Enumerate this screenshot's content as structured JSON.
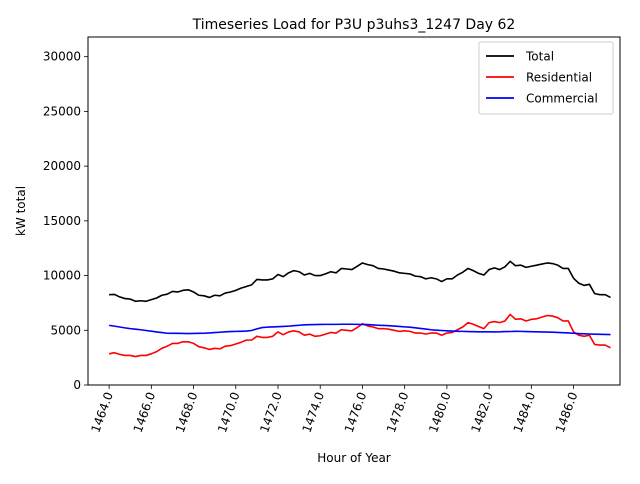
{
  "chart_data": {
    "type": "line",
    "title": "Timeseries Load for P3U p3uhs3_1247  Day 62",
    "xlabel": "Hour of Year",
    "ylabel": "kW total",
    "xlim": [
      1463.0,
      1488.2
    ],
    "ylim": [
      0,
      31800
    ],
    "xticks": [
      1464,
      1466,
      1468,
      1470,
      1472,
      1474,
      1476,
      1478,
      1480,
      1482,
      1484,
      1486
    ],
    "xtick_labels": [
      "1464.0",
      "1466.0",
      "1468.0",
      "1470.0",
      "1472.0",
      "1474.0",
      "1476.0",
      "1478.0",
      "1480.0",
      "1482.0",
      "1484.0",
      "1486.0"
    ],
    "yticks": [
      0,
      5000,
      10000,
      15000,
      20000,
      25000,
      30000
    ],
    "ytick_labels": [
      "0",
      "5000",
      "10000",
      "15000",
      "20000",
      "25000",
      "30000"
    ],
    "legend_position": "top-right",
    "x": [
      1464.0,
      1464.25,
      1464.5,
      1464.75,
      1465.0,
      1465.25,
      1465.5,
      1465.75,
      1466.0,
      1466.25,
      1466.5,
      1466.75,
      1467.0,
      1467.25,
      1467.5,
      1467.75,
      1468.0,
      1468.25,
      1468.5,
      1468.75,
      1469.0,
      1469.25,
      1469.5,
      1469.75,
      1470.0,
      1470.25,
      1470.5,
      1470.75,
      1471.0,
      1471.25,
      1471.5,
      1471.75,
      1472.0,
      1472.25,
      1472.5,
      1472.75,
      1473.0,
      1473.25,
      1473.5,
      1473.75,
      1474.0,
      1474.25,
      1474.5,
      1474.75,
      1475.0,
      1475.25,
      1475.5,
      1475.75,
      1476.0,
      1476.25,
      1476.5,
      1476.75,
      1477.0,
      1477.25,
      1477.5,
      1477.75,
      1478.0,
      1478.25,
      1478.5,
      1478.75,
      1479.0,
      1479.25,
      1479.5,
      1479.75,
      1480.0,
      1480.25,
      1480.5,
      1480.75,
      1481.0,
      1481.25,
      1481.5,
      1481.75,
      1482.0,
      1482.25,
      1482.5,
      1482.75,
      1483.0,
      1483.25,
      1483.5,
      1483.75,
      1484.0,
      1484.25,
      1484.5,
      1484.75,
      1485.0,
      1485.25,
      1485.5,
      1485.75,
      1486.0,
      1486.25,
      1486.5,
      1486.75,
      1487.0,
      1487.25,
      1487.5,
      1487.75
    ],
    "series": [
      {
        "name": "Total",
        "color": "#000000",
        "values": [
          8250,
          8280,
          8050,
          7900,
          7850,
          7650,
          7700,
          7650,
          7800,
          7950,
          8200,
          8300,
          8550,
          8500,
          8650,
          8700,
          8500,
          8200,
          8150,
          8000,
          8200,
          8150,
          8400,
          8500,
          8650,
          8850,
          9000,
          9150,
          9650,
          9600,
          9600,
          9700,
          10100,
          9900,
          10250,
          10450,
          10350,
          10050,
          10200,
          10000,
          10000,
          10150,
          10350,
          10250,
          10650,
          10600,
          10550,
          10850,
          11150,
          11000,
          10900,
          10650,
          10600,
          10500,
          10400,
          10250,
          10200,
          10150,
          9950,
          9900,
          9700,
          9800,
          9700,
          9450,
          9700,
          9700,
          10050,
          10300,
          10650,
          10450,
          10200,
          10050,
          10550,
          10700,
          10550,
          10800,
          11300,
          10900,
          10950,
          10750,
          10850,
          10950,
          11050,
          11150,
          11100,
          10950,
          10650,
          10650,
          9750,
          9300,
          9100,
          9200,
          8350,
          8250,
          8250,
          8000
        ]
      },
      {
        "name": "Residential",
        "color": "#ff0000",
        "values": [
          2850,
          2950,
          2800,
          2700,
          2700,
          2600,
          2700,
          2700,
          2850,
          3050,
          3350,
          3550,
          3800,
          3800,
          3950,
          3950,
          3800,
          3500,
          3400,
          3250,
          3350,
          3300,
          3550,
          3600,
          3750,
          3900,
          4100,
          4100,
          4450,
          4350,
          4350,
          4450,
          4850,
          4600,
          4850,
          4950,
          4850,
          4550,
          4650,
          4450,
          4500,
          4650,
          4800,
          4750,
          5050,
          5000,
          4950,
          5250,
          5600,
          5400,
          5300,
          5150,
          5150,
          5100,
          5000,
          4900,
          4950,
          4900,
          4750,
          4750,
          4650,
          4750,
          4750,
          4550,
          4750,
          4800,
          5050,
          5300,
          5700,
          5550,
          5350,
          5150,
          5700,
          5800,
          5700,
          5850,
          6450,
          6000,
          6050,
          5850,
          6000,
          6050,
          6200,
          6350,
          6300,
          6150,
          5850,
          5850,
          4850,
          4550,
          4450,
          4550,
          3700,
          3650,
          3650,
          3400
        ]
      },
      {
        "name": "Commercial",
        "color": "#0000ff",
        "values": [
          5450,
          5380,
          5300,
          5220,
          5150,
          5100,
          5050,
          4980,
          4920,
          4850,
          4790,
          4730,
          4720,
          4720,
          4710,
          4700,
          4710,
          4720,
          4730,
          4760,
          4790,
          4820,
          4860,
          4880,
          4900,
          4910,
          4930,
          4980,
          5130,
          5250,
          5290,
          5310,
          5330,
          5350,
          5380,
          5420,
          5460,
          5500,
          5510,
          5520,
          5530,
          5540,
          5540,
          5540,
          5550,
          5550,
          5550,
          5540,
          5530,
          5520,
          5490,
          5460,
          5440,
          5420,
          5390,
          5350,
          5310,
          5280,
          5230,
          5170,
          5110,
          5050,
          5010,
          4980,
          4950,
          4930,
          4910,
          4900,
          4880,
          4870,
          4860,
          4860,
          4860,
          4850,
          4860,
          4880,
          4890,
          4910,
          4900,
          4880,
          4870,
          4860,
          4850,
          4840,
          4830,
          4800,
          4780,
          4760,
          4730,
          4700,
          4680,
          4660,
          4640,
          4630,
          4620,
          4610
        ]
      }
    ]
  }
}
